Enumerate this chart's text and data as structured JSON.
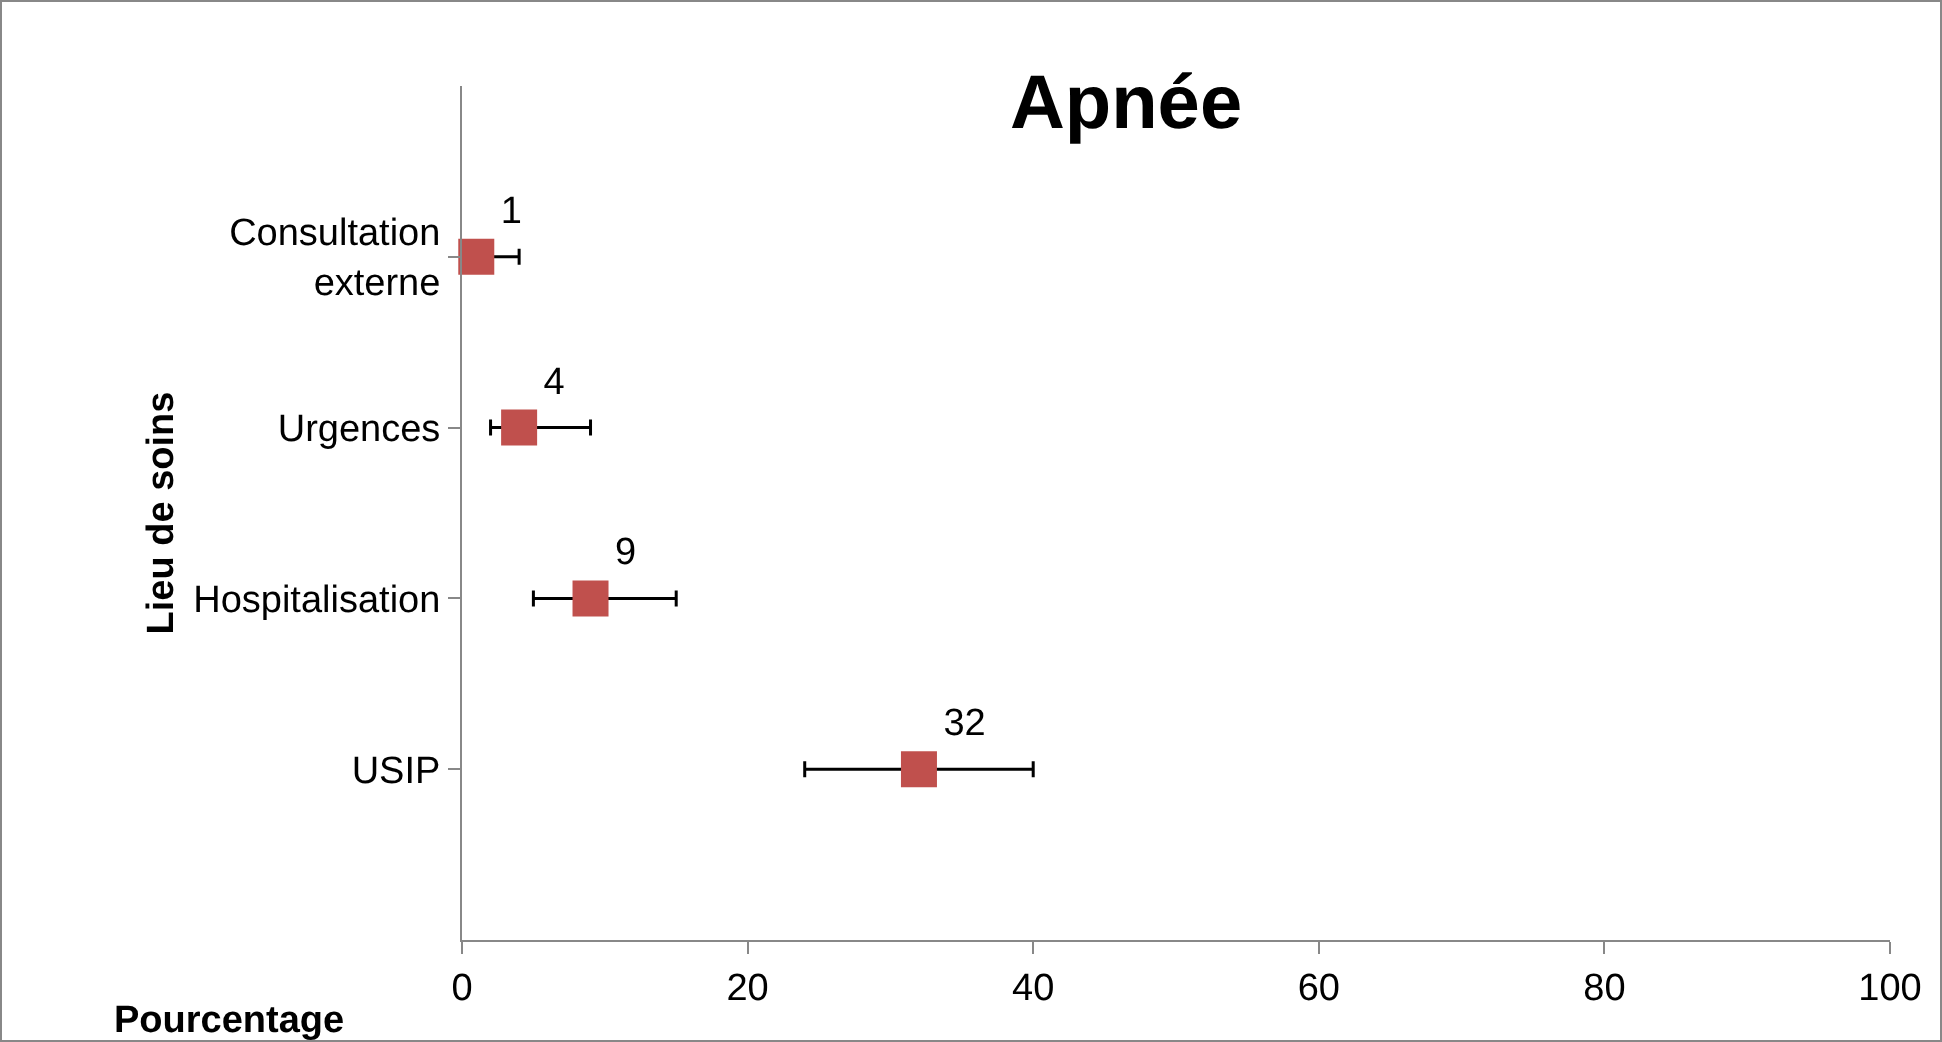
{
  "chart_data": {
    "type": "scatter",
    "title": "Apnée",
    "xlabel": "Pourcentage",
    "ylabel": "Lieu de soins",
    "categories": [
      "Consultation externe",
      "Urgences",
      "Hospitalisation",
      "USIP"
    ],
    "values": [
      1,
      4,
      9,
      32
    ],
    "errors": [
      [
        0,
        4
      ],
      [
        2,
        9
      ],
      [
        5,
        15
      ],
      [
        24,
        40
      ]
    ],
    "color": "#c0504d",
    "marker": "square",
    "orientation": "horizontal",
    "data_labels": true,
    "xlim": [
      0,
      100
    ],
    "xticks": [
      0,
      20,
      40,
      60,
      80,
      100
    ],
    "grid": false
  }
}
